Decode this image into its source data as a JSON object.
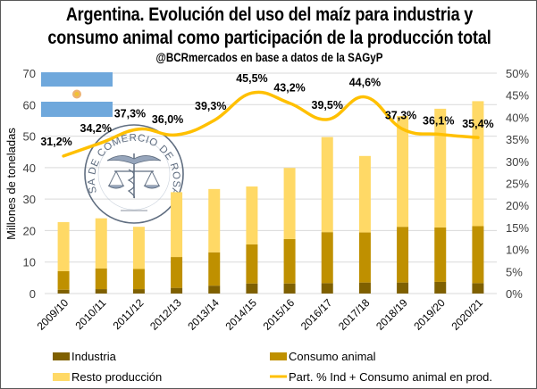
{
  "title_line1": "Argentina. Evolución del uso del maíz para industria y",
  "title_line2": "consumo animal como participación de la producción total",
  "subtitle": "@BCRmercados en base a datos de la SAGyP",
  "watermark": {
    "seal_text": "BOLSA DE COMERCIO DE ROSARIO",
    "flag": "argentina-flag"
  },
  "colors": {
    "industria": "#7F6000",
    "consumo_animal": "#BF9000",
    "resto": "#FFD966",
    "line": "#FFC000",
    "grid": "#D9D9D9",
    "flag_blue": "#6FA8DC",
    "seal": "#44546A"
  },
  "chart_data": {
    "type": "bar",
    "stacked": true,
    "title": "Argentina. Evolución del uso del maíz para industria y consumo animal como participación de la producción total",
    "subtitle": "@BCRmercados en base a datos de la SAGyP",
    "categories": [
      "2009/10",
      "2010/11",
      "2011/12",
      "2012/13",
      "2013/14",
      "2014/15",
      "2015/16",
      "2016/17",
      "2017/18",
      "2018/19",
      "2019/20",
      "2020/21"
    ],
    "series": [
      {
        "name": "Industria",
        "type": "bar",
        "axis": "left",
        "values": [
          1.2,
          1.4,
          1.4,
          1.8,
          2.5,
          3.2,
          3.2,
          3.3,
          3.5,
          3.5,
          3.7,
          3.3
        ]
      },
      {
        "name": "Consumo animal",
        "type": "bar",
        "axis": "left",
        "values": [
          5.9,
          6.6,
          6.4,
          9.8,
          10.6,
          12.4,
          14.1,
          16.2,
          15.9,
          17.7,
          17.3,
          18.1
        ]
      },
      {
        "name": "Resto producción",
        "type": "bar",
        "axis": "left",
        "values": [
          15.6,
          15.9,
          13.4,
          20.6,
          20.1,
          18.4,
          22.6,
          30.2,
          24.3,
          35.2,
          37.7,
          39.7
        ]
      },
      {
        "name": "Part. % Ind + Consumo animal en prod.",
        "type": "line",
        "axis": "right",
        "values": [
          31.2,
          34.2,
          37.3,
          36.0,
          39.3,
          45.5,
          43.2,
          39.5,
          44.6,
          37.3,
          36.1,
          35.4
        ]
      }
    ],
    "data_labels": [
      "31,2%",
      "34,2%",
      "37,3%",
      "36,0%",
      "39,3%",
      "45,5%",
      "43,2%",
      "39,5%",
      "44,6%",
      "37,3%",
      "36,1%",
      "35,4%"
    ],
    "ylabel": "Millones de toneladas",
    "ylim": [
      0,
      70
    ],
    "yticks": [
      0,
      10,
      20,
      30,
      40,
      50,
      60,
      70
    ],
    "y2lim": [
      0,
      50
    ],
    "y2ticks": [
      "0%",
      "5%",
      "10%",
      "15%",
      "20%",
      "25%",
      "30%",
      "35%",
      "40%",
      "45%",
      "50%"
    ],
    "xlabel": "",
    "grid": true,
    "legend_position": "bottom"
  }
}
